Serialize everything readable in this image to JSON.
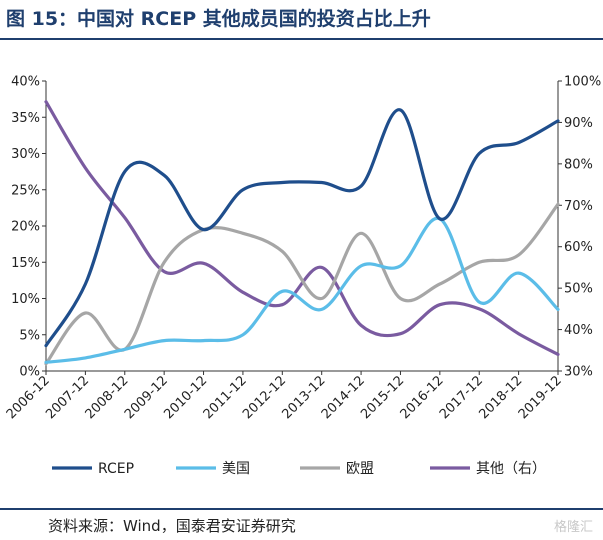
{
  "title": "图 15：中国对 RCEP 其他成员国的投资占比上升",
  "source": "资料来源：Wind，国泰君安证券研究",
  "watermark": "格隆汇",
  "chart_data": {
    "type": "line",
    "categories": [
      "2006-12",
      "2007-12",
      "2008-12",
      "2009-12",
      "2010-12",
      "2011-12",
      "2012-12",
      "2013-12",
      "2014-12",
      "2015-12",
      "2016-12",
      "2017-12",
      "2018-12",
      "2019-12"
    ],
    "y_left": {
      "ylim": [
        0,
        40
      ],
      "ticks": [
        "0%",
        "5%",
        "10%",
        "15%",
        "20%",
        "25%",
        "30%",
        "35%",
        "40%"
      ]
    },
    "y_right": {
      "ylim": [
        30,
        100
      ],
      "ticks": [
        "30%",
        "40%",
        "50%",
        "60%",
        "70%",
        "80%",
        "90%",
        "100%"
      ]
    },
    "legend_position": "bottom",
    "grid": false,
    "series": [
      {
        "name": "RCEP",
        "axis": "left",
        "color": "#1f4e8c",
        "values": [
          3.5,
          12,
          27.5,
          27,
          19.5,
          25,
          26,
          26,
          25.5,
          36,
          21,
          30,
          31.5,
          34.5
        ]
      },
      {
        "name": "美国",
        "axis": "left",
        "color": "#5bbde8",
        "values": [
          1.2,
          1.8,
          3,
          4.2,
          4.2,
          5,
          11,
          8.5,
          14.5,
          14.5,
          21,
          9.5,
          13.5,
          8.5
        ]
      },
      {
        "name": "欧盟",
        "axis": "left",
        "color": "#a6a6a6",
        "values": [
          1,
          8,
          3,
          15,
          19.5,
          19,
          16.5,
          10,
          19,
          10,
          12,
          15,
          16,
          23
        ]
      },
      {
        "name": "其他（右）",
        "axis": "right",
        "color": "#7a5ba0",
        "values": [
          95,
          79,
          67,
          54,
          56,
          49,
          46,
          55,
          41,
          39,
          46,
          45,
          39,
          34
        ]
      }
    ]
  }
}
